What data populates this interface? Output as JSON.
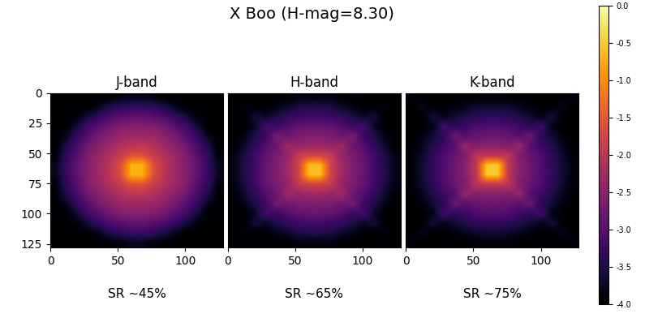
{
  "title": "X Boo (H-mag=8.30)",
  "colorbar": {
    "range": [
      -4.0,
      0.0
    ],
    "ticks": [
      0.0,
      -0.5,
      -1.0,
      -1.5,
      -2.0,
      -2.5,
      -3.0,
      -3.5,
      -4.0
    ]
  },
  "chart_data": [
    {
      "type": "heatmap",
      "title": "J-band",
      "caption": "SR ~45%",
      "xlim": [
        0,
        128
      ],
      "ylim": [
        128,
        0
      ],
      "xticks": [
        0,
        50,
        100
      ],
      "yticks": [
        0,
        25,
        50,
        75,
        100,
        125
      ],
      "cells": [
        [
          -4.0,
          -4.0,
          -4.0,
          -4.0,
          -4.0,
          -4.0,
          -3.9,
          -3.8,
          -3.8,
          -3.9,
          -4.0,
          -4.0,
          -4.0,
          -4.0,
          -4.0,
          -4.0
        ],
        [
          -4.0,
          -4.0,
          -4.0,
          -4.0,
          -3.8,
          -3.5,
          -3.35,
          -3.3,
          -3.3,
          -3.35,
          -3.5,
          -3.8,
          -4.0,
          -4.0,
          -4.0,
          -4.0
        ],
        [
          -4.0,
          -4.0,
          -3.9,
          -3.6,
          -3.3,
          -3.1,
          -3.0,
          -2.9,
          -2.9,
          -3.0,
          -3.1,
          -3.3,
          -3.6,
          -3.9,
          -4.0,
          -4.0
        ],
        [
          -4.0,
          -4.0,
          -3.6,
          -3.2,
          -3.0,
          -2.75,
          -2.6,
          -2.55,
          -2.55,
          -2.6,
          -2.75,
          -3.0,
          -3.2,
          -3.6,
          -4.0,
          -4.0
        ],
        [
          -4.0,
          -3.8,
          -3.3,
          -3.0,
          -2.7,
          -2.5,
          -2.35,
          -2.3,
          -2.3,
          -2.35,
          -2.5,
          -2.7,
          -3.0,
          -3.3,
          -3.8,
          -4.0
        ],
        [
          -4.0,
          -3.5,
          -3.1,
          -2.75,
          -2.5,
          -2.3,
          -2.1,
          -2.0,
          -2.0,
          -2.1,
          -2.3,
          -2.5,
          -2.75,
          -3.1,
          -3.5,
          -4.0
        ],
        [
          -3.9,
          -3.35,
          -3.0,
          -2.6,
          -2.35,
          -2.1,
          -1.9,
          -1.6,
          -1.6,
          -1.9,
          -2.1,
          -2.35,
          -2.6,
          -3.0,
          -3.35,
          -3.9
        ],
        [
          -3.8,
          -3.3,
          -2.9,
          -2.55,
          -2.3,
          -2.0,
          -1.6,
          -0.7,
          -0.7,
          -1.6,
          -2.0,
          -2.3,
          -2.55,
          -2.9,
          -3.3,
          -3.8
        ],
        [
          -3.8,
          -3.3,
          -2.9,
          -2.55,
          -2.3,
          -2.0,
          -1.6,
          -0.7,
          -0.7,
          -1.6,
          -2.0,
          -2.3,
          -2.55,
          -2.9,
          -3.3,
          -3.8
        ],
        [
          -3.9,
          -3.35,
          -3.0,
          -2.6,
          -2.35,
          -2.1,
          -1.9,
          -1.6,
          -1.6,
          -1.9,
          -2.1,
          -2.35,
          -2.6,
          -3.0,
          -3.35,
          -3.9
        ],
        [
          -4.0,
          -3.5,
          -3.1,
          -2.75,
          -2.5,
          -2.3,
          -2.1,
          -2.0,
          -2.0,
          -2.1,
          -2.3,
          -2.5,
          -2.75,
          -3.1,
          -3.5,
          -4.0
        ],
        [
          -4.0,
          -3.8,
          -3.3,
          -3.0,
          -2.7,
          -2.5,
          -2.35,
          -2.3,
          -2.3,
          -2.35,
          -2.5,
          -2.7,
          -3.0,
          -3.3,
          -3.8,
          -4.0
        ],
        [
          -4.0,
          -4.0,
          -3.6,
          -3.2,
          -3.0,
          -2.75,
          -2.6,
          -2.55,
          -2.55,
          -2.6,
          -2.75,
          -3.0,
          -3.2,
          -3.6,
          -4.0,
          -4.0
        ],
        [
          -4.0,
          -4.0,
          -3.9,
          -3.6,
          -3.3,
          -3.1,
          -3.0,
          -2.9,
          -2.9,
          -3.0,
          -3.1,
          -3.3,
          -3.6,
          -3.9,
          -4.0,
          -4.0
        ],
        [
          -4.0,
          -4.0,
          -4.0,
          -4.0,
          -3.8,
          -3.5,
          -3.35,
          -3.3,
          -3.3,
          -3.35,
          -3.5,
          -3.8,
          -4.0,
          -4.0,
          -4.0,
          -4.0
        ],
        [
          -4.0,
          -4.0,
          -4.0,
          -4.0,
          -4.0,
          -4.0,
          -3.9,
          -3.8,
          -3.8,
          -3.9,
          -4.0,
          -4.0,
          -4.0,
          -4.0,
          -4.0,
          -4.0
        ]
      ]
    },
    {
      "type": "heatmap",
      "title": "H-band",
      "caption": "SR ~65%",
      "tick_labels": "x",
      "xlim": [
        0,
        128
      ],
      "ylim": [
        128,
        0
      ],
      "xticks": [
        0,
        50,
        100
      ],
      "cells": [
        [
          -4.0,
          -4.0,
          -4.0,
          -4.0,
          -4.0,
          -4.0,
          -3.9,
          -3.9,
          -3.9,
          -3.9,
          -4.0,
          -4.0,
          -4.0,
          -4.0,
          -4.0,
          -4.0
        ],
        [
          -4.0,
          -3.9,
          -4.0,
          -4.0,
          -3.85,
          -3.7,
          -3.55,
          -3.5,
          -3.5,
          -3.55,
          -3.7,
          -3.85,
          -4.0,
          -4.0,
          -3.9,
          -4.0
        ],
        [
          -4.0,
          -4.0,
          -3.6,
          -3.75,
          -3.5,
          -3.35,
          -3.25,
          -3.2,
          -3.2,
          -3.25,
          -3.35,
          -3.5,
          -3.75,
          -3.6,
          -4.0,
          -4.0
        ],
        [
          -4.0,
          -4.0,
          -3.75,
          -3.15,
          -3.25,
          -3.05,
          -2.9,
          -2.85,
          -2.85,
          -2.9,
          -3.05,
          -3.25,
          -3.15,
          -3.75,
          -4.0,
          -4.0
        ],
        [
          -4.0,
          -3.85,
          -3.5,
          -3.25,
          -2.7,
          -2.8,
          -2.65,
          -2.6,
          -2.6,
          -2.65,
          -2.8,
          -2.7,
          -3.25,
          -3.5,
          -3.85,
          -4.0
        ],
        [
          -4.0,
          -3.7,
          -3.35,
          -3.05,
          -2.8,
          -2.3,
          -2.4,
          -2.3,
          -2.3,
          -2.4,
          -2.3,
          -2.8,
          -3.05,
          -3.35,
          -3.7,
          -4.0
        ],
        [
          -3.9,
          -3.55,
          -3.25,
          -2.9,
          -2.65,
          -2.4,
          -1.9,
          -1.8,
          -1.8,
          -1.9,
          -2.4,
          -2.65,
          -2.9,
          -3.25,
          -3.55,
          -3.9
        ],
        [
          -3.9,
          -3.5,
          -3.2,
          -2.85,
          -2.6,
          -2.3,
          -1.8,
          -0.6,
          -0.6,
          -1.8,
          -2.3,
          -2.6,
          -2.85,
          -3.2,
          -3.5,
          -3.9
        ],
        [
          -3.9,
          -3.5,
          -3.2,
          -2.85,
          -2.6,
          -2.3,
          -1.8,
          -0.6,
          -0.6,
          -1.8,
          -2.3,
          -2.6,
          -2.85,
          -3.2,
          -3.5,
          -3.9
        ],
        [
          -3.9,
          -3.55,
          -3.25,
          -2.9,
          -2.65,
          -2.4,
          -1.9,
          -1.8,
          -1.8,
          -1.9,
          -2.4,
          -2.65,
          -2.9,
          -3.25,
          -3.55,
          -3.9
        ],
        [
          -4.0,
          -3.7,
          -3.35,
          -3.05,
          -2.8,
          -2.3,
          -2.4,
          -2.3,
          -2.3,
          -2.4,
          -2.3,
          -2.8,
          -3.05,
          -3.35,
          -3.7,
          -4.0
        ],
        [
          -4.0,
          -3.85,
          -3.5,
          -3.25,
          -2.7,
          -2.8,
          -2.65,
          -2.6,
          -2.6,
          -2.65,
          -2.8,
          -2.7,
          -3.25,
          -3.5,
          -3.85,
          -4.0
        ],
        [
          -4.0,
          -4.0,
          -3.75,
          -3.15,
          -3.25,
          -3.05,
          -2.9,
          -2.85,
          -2.85,
          -2.9,
          -3.05,
          -3.25,
          -3.15,
          -3.75,
          -4.0,
          -4.0
        ],
        [
          -4.0,
          -4.0,
          -3.6,
          -3.75,
          -3.5,
          -3.35,
          -3.25,
          -3.2,
          -3.2,
          -3.25,
          -3.35,
          -3.5,
          -3.75,
          -3.6,
          -4.0,
          -4.0
        ],
        [
          -4.0,
          -3.9,
          -4.0,
          -4.0,
          -3.85,
          -3.7,
          -3.55,
          -3.5,
          -3.5,
          -3.55,
          -3.7,
          -3.85,
          -4.0,
          -4.0,
          -3.9,
          -4.0
        ],
        [
          -4.0,
          -4.0,
          -4.0,
          -4.0,
          -4.0,
          -4.0,
          -3.9,
          -3.9,
          -3.9,
          -3.9,
          -4.0,
          -4.0,
          -4.0,
          -4.0,
          -4.0,
          -4.0
        ]
      ]
    },
    {
      "type": "heatmap",
      "title": "K-band",
      "caption": "SR ~75%",
      "tick_labels": "x",
      "xlim": [
        0,
        128
      ],
      "ylim": [
        128,
        0
      ],
      "xticks": [
        0,
        50,
        100
      ],
      "cells": [
        [
          -3.9,
          -4.0,
          -4.0,
          -4.0,
          -4.0,
          -4.0,
          -3.95,
          -3.95,
          -3.95,
          -3.95,
          -4.0,
          -4.0,
          -4.0,
          -4.0,
          -4.0,
          -3.9
        ],
        [
          -4.0,
          -3.8,
          -4.0,
          -4.0,
          -3.9,
          -3.8,
          -3.7,
          -3.65,
          -3.65,
          -3.7,
          -3.8,
          -3.9,
          -4.0,
          -4.0,
          -3.8,
          -4.0
        ],
        [
          -4.0,
          -4.0,
          -3.6,
          -3.85,
          -3.65,
          -3.5,
          -3.4,
          -3.35,
          -3.35,
          -3.4,
          -3.5,
          -3.65,
          -3.85,
          -3.6,
          -4.0,
          -4.0
        ],
        [
          -4.0,
          -4.0,
          -3.85,
          -3.2,
          -3.4,
          -3.25,
          -3.1,
          -3.05,
          -3.05,
          -3.1,
          -3.25,
          -3.4,
          -3.2,
          -3.85,
          -4.0,
          -4.0
        ],
        [
          -4.0,
          -3.9,
          -3.65,
          -3.4,
          -2.8,
          -3.0,
          -2.85,
          -2.8,
          -2.8,
          -2.85,
          -3.0,
          -2.8,
          -3.4,
          -3.65,
          -3.9,
          -4.0
        ],
        [
          -4.0,
          -3.8,
          -3.5,
          -3.25,
          -3.0,
          -2.4,
          -2.6,
          -2.5,
          -2.5,
          -2.6,
          -2.4,
          -3.0,
          -3.25,
          -3.5,
          -3.8,
          -4.0
        ],
        [
          -3.95,
          -3.7,
          -3.4,
          -3.1,
          -2.85,
          -2.6,
          -2.0,
          -2.0,
          -2.0,
          -2.0,
          -2.6,
          -2.85,
          -3.1,
          -3.4,
          -3.7,
          -3.95
        ],
        [
          -3.95,
          -3.65,
          -3.35,
          -3.05,
          -2.8,
          -2.5,
          -2.0,
          -0.5,
          -0.5,
          -2.0,
          -2.5,
          -2.8,
          -3.05,
          -3.35,
          -3.65,
          -3.95
        ],
        [
          -3.95,
          -3.65,
          -3.35,
          -3.05,
          -2.8,
          -2.5,
          -2.0,
          -0.5,
          -0.5,
          -2.0,
          -2.5,
          -2.8,
          -3.05,
          -3.35,
          -3.65,
          -3.95
        ],
        [
          -3.95,
          -3.7,
          -3.4,
          -3.1,
          -2.85,
          -2.6,
          -2.0,
          -2.0,
          -2.0,
          -2.0,
          -2.6,
          -2.85,
          -3.1,
          -3.4,
          -3.7,
          -3.95
        ],
        [
          -4.0,
          -3.8,
          -3.5,
          -3.25,
          -3.0,
          -2.4,
          -2.6,
          -2.5,
          -2.5,
          -2.6,
          -2.4,
          -3.0,
          -3.25,
          -3.5,
          -3.8,
          -4.0
        ],
        [
          -4.0,
          -3.9,
          -3.65,
          -3.4,
          -2.8,
          -3.0,
          -2.85,
          -2.8,
          -2.8,
          -2.85,
          -3.0,
          -2.8,
          -3.4,
          -3.65,
          -3.9,
          -4.0
        ],
        [
          -4.0,
          -4.0,
          -3.85,
          -3.2,
          -3.4,
          -3.25,
          -3.1,
          -3.05,
          -3.05,
          -3.1,
          -3.25,
          -3.4,
          -3.2,
          -3.85,
          -4.0,
          -4.0
        ],
        [
          -4.0,
          -4.0,
          -3.6,
          -3.85,
          -3.65,
          -3.5,
          -3.4,
          -3.35,
          -3.35,
          -3.4,
          -3.5,
          -3.65,
          -3.85,
          -3.6,
          -4.0,
          -4.0
        ],
        [
          -4.0,
          -3.8,
          -4.0,
          -4.0,
          -3.9,
          -3.8,
          -3.7,
          -3.65,
          -3.65,
          -3.7,
          -3.8,
          -3.9,
          -4.0,
          -4.0,
          -3.8,
          -4.0
        ],
        [
          -3.9,
          -4.0,
          -4.0,
          -4.0,
          -4.0,
          -4.0,
          -3.95,
          -3.95,
          -3.95,
          -3.95,
          -4.0,
          -4.0,
          -4.0,
          -4.0,
          -4.0,
          -3.9
        ]
      ]
    }
  ]
}
